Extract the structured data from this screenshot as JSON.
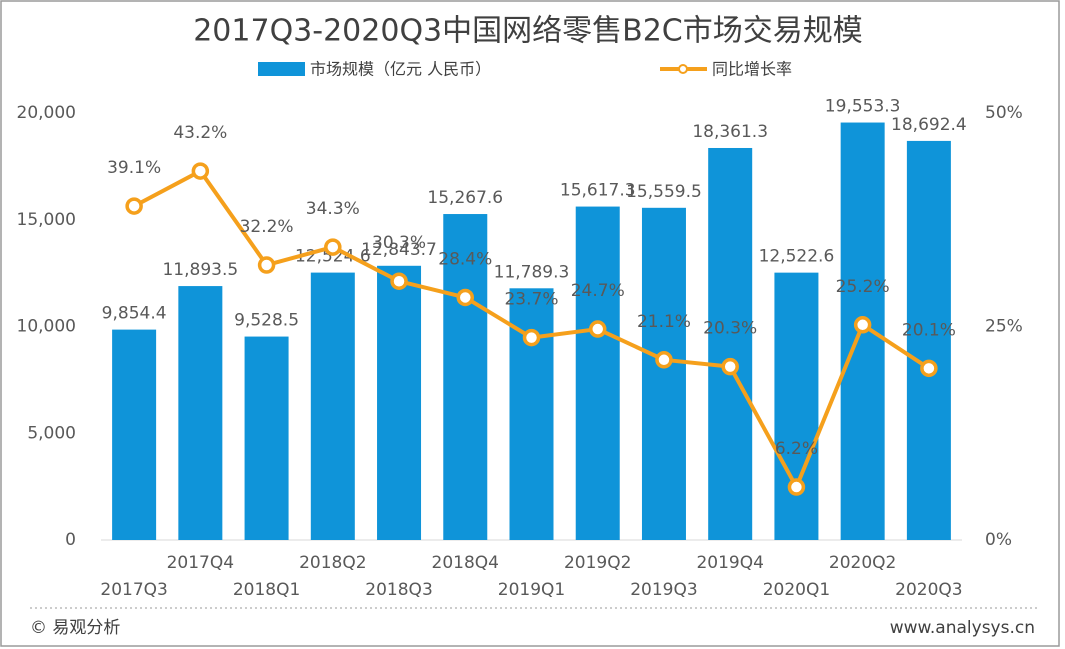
{
  "chart_data": {
    "type": "bar-line",
    "title": "2017Q3-2020Q3中国网络零售B2C市场交易规模",
    "categories": [
      "2017Q3",
      "2017Q4",
      "2018Q1",
      "2018Q2",
      "2018Q3",
      "2018Q4",
      "2019Q1",
      "2019Q2",
      "2019Q3",
      "2019Q4",
      "2020Q1",
      "2020Q2",
      "2020Q3"
    ],
    "series": [
      {
        "name": "市场规模（亿元 人民币）",
        "type": "bar",
        "color": "#0f94d9",
        "values": [
          9854.4,
          11893.5,
          9528.5,
          12524.6,
          12843.7,
          15267.6,
          11789.3,
          15617.3,
          15559.5,
          18361.3,
          12522.6,
          19553.3,
          18692.4
        ],
        "value_labels": [
          "9,854.4",
          "11,893.5",
          "9,528.5",
          "12,524.6",
          "12,843.7",
          "15,267.6",
          "11,789.3",
          "15,617.3",
          "15,559.5",
          "18,361.3",
          "12,522.6",
          "19,553.3",
          "18,692.4"
        ]
      },
      {
        "name": "同比增长率",
        "type": "line",
        "axis": "y2",
        "color": "#f5a01c",
        "values": [
          39.1,
          43.2,
          32.2,
          34.3,
          30.3,
          28.4,
          23.7,
          24.7,
          21.1,
          20.3,
          6.2,
          25.2,
          20.1
        ],
        "value_labels": [
          "39.1%",
          "43.2%",
          "32.2%",
          "34.3%",
          "30.3%",
          "28.4%",
          "23.7%",
          "24.7%",
          "21.1%",
          "20.3%",
          "6.2%",
          "25.2%",
          "20.1%"
        ]
      }
    ],
    "ylim": [
      0,
      20000
    ],
    "yticks": [
      0,
      {
        "value": 5000,
        "label": "5,000"
      },
      {
        "value": 10000,
        "label": "10,000"
      },
      {
        "value": 15000,
        "label": "15,000"
      },
      {
        "value": 20000,
        "label": "20,000"
      }
    ],
    "y2lim": [
      0,
      50
    ],
    "y2ticks": [
      {
        "value": 0,
        "label": "0%"
      },
      {
        "value": 25,
        "label": "25%"
      },
      {
        "value": 50,
        "label": "50%"
      }
    ],
    "source": "© 易观分析",
    "url": "www.analysys.cn"
  }
}
